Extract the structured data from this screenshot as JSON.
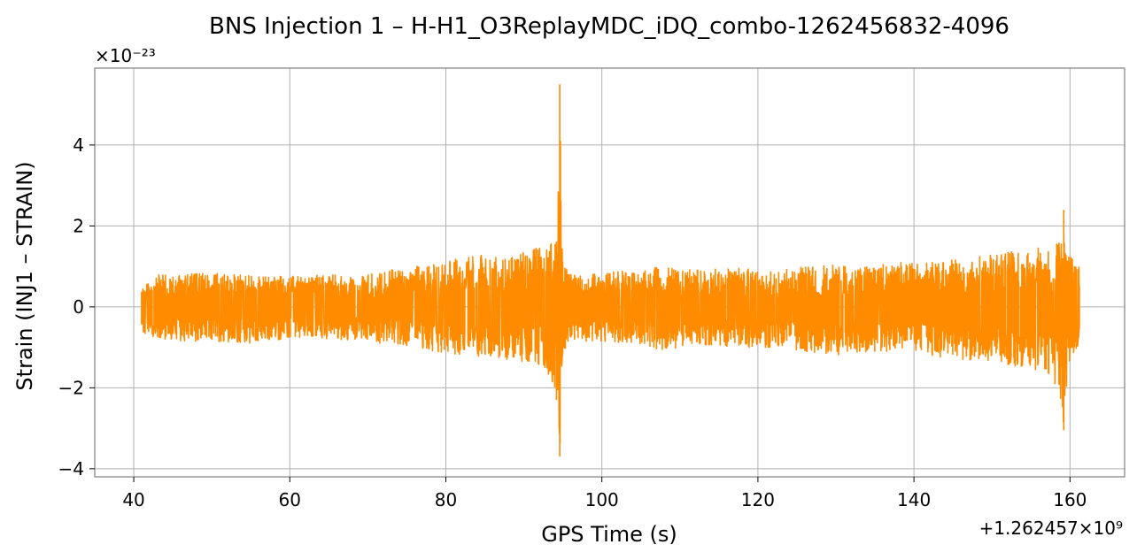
{
  "chart_data": {
    "type": "line",
    "title": "BNS Injection 1 – H-H1_O3ReplayMDC_iDQ_combo-1262456832-4096",
    "xlabel": "GPS Time (s)",
    "ylabel": "Strain (INJ1 – STRAIN)",
    "x_offset_label": "+1.262457×10⁹",
    "y_multiplier_label": "×10⁻²³",
    "xlim": [
      35,
      167
    ],
    "ylim": [
      -4.2,
      5.9
    ],
    "x_ticks": [
      40,
      60,
      80,
      100,
      120,
      140,
      160
    ],
    "x_tick_labels": [
      "40",
      "60",
      "80",
      "100",
      "120",
      "140",
      "160"
    ],
    "y_ticks": [
      -4,
      -2,
      0,
      2,
      4
    ],
    "y_tick_labels": [
      "−4",
      "−2",
      "0",
      "2",
      "4"
    ],
    "grid": true,
    "series": [
      {
        "color": "#ff8c00",
        "x_range": [
          41,
          161.2
        ],
        "envelope": {
          "x": [
            41,
            43,
            46,
            50,
            55,
            60,
            65,
            70,
            75,
            78,
            82,
            85,
            88,
            90,
            92,
            93.5,
            94.3,
            94.6,
            95,
            96,
            98,
            100,
            104,
            108,
            110,
            114,
            118,
            122,
            126,
            130,
            134,
            138,
            142,
            146,
            150,
            154,
            157,
            158.7,
            159.2,
            159.8,
            161.2
          ],
          "upper": [
            0.5,
            0.8,
            0.8,
            0.85,
            0.8,
            0.75,
            0.8,
            0.8,
            1.0,
            1.1,
            1.2,
            1.3,
            1.2,
            1.4,
            1.5,
            1.6,
            1.9,
            5.5,
            1.2,
            0.8,
            0.8,
            0.85,
            0.9,
            1.0,
            0.9,
            0.95,
            0.95,
            0.9,
            1.0,
            1.05,
            1.0,
            1.1,
            1.1,
            1.2,
            1.3,
            1.4,
            1.5,
            1.6,
            2.4,
            1.3,
            1.0
          ],
          "lower": [
            -0.7,
            -0.8,
            -0.85,
            -0.85,
            -0.9,
            -0.8,
            -0.8,
            -0.85,
            -1.0,
            -1.1,
            -1.2,
            -1.25,
            -1.3,
            -1.35,
            -1.5,
            -1.8,
            -2.6,
            -3.7,
            -1.2,
            -0.8,
            -0.85,
            -0.85,
            -0.9,
            -1.1,
            -1.0,
            -0.95,
            -1.0,
            -1.0,
            -1.1,
            -1.2,
            -1.1,
            -1.1,
            -1.2,
            -1.3,
            -1.4,
            -1.5,
            -1.6,
            -2.1,
            -3.05,
            -1.5,
            -0.9
          ]
        }
      }
    ]
  }
}
